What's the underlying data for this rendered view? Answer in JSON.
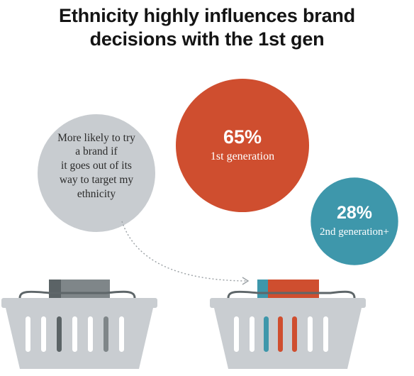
{
  "title_lines": [
    "Ethnicity highly influences brand",
    "decisions with the 1st gen"
  ],
  "callout_lines": [
    "More likely to try",
    "a brand if",
    "it goes out of its",
    "way to target my",
    "ethnicity"
  ],
  "colors": {
    "first_generation": "#cf4e2f",
    "second_generation": "#3e97ab",
    "callout_bubble": "#c8ccd0",
    "basket": "#c9cdd1",
    "basket_slot": "#ffffff",
    "product_gray": "#7f8689",
    "product_dark": "#5b6366",
    "handle": "#5e6669"
  },
  "chart_data": {
    "type": "bubble",
    "title": "Ethnicity highly influences brand decisions with the 1st gen",
    "subtitle": "More likely to try a brand if it goes out of its way to target my ethnicity",
    "unit": "%",
    "categories": [
      "1st generation",
      "2nd generation+"
    ],
    "values": [
      65,
      28
    ],
    "value_labels": [
      "65%",
      "28%"
    ],
    "colors": [
      "#cf4e2f",
      "#3e97ab"
    ]
  }
}
